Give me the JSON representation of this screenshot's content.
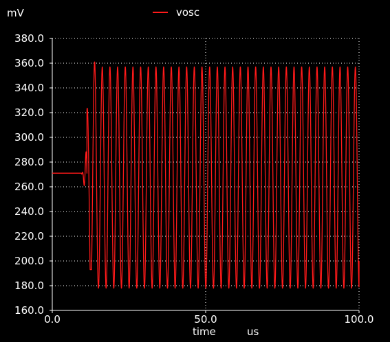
{
  "chart_data": {
    "type": "line",
    "ylabel": "mV",
    "xlabel": "time",
    "xunit": "us",
    "xlim": [
      0,
      100
    ],
    "ylim": [
      160,
      380
    ],
    "xticks": [
      0,
      50,
      100
    ],
    "xtick_labels": [
      "0.0",
      "50.0",
      "100.0"
    ],
    "yticks": [
      160,
      180,
      200,
      220,
      240,
      260,
      280,
      300,
      320,
      340,
      360,
      380
    ],
    "ytick_labels": [
      "160.0",
      "180.0",
      "200.0",
      "220.0",
      "240.0",
      "260.0",
      "280.0",
      "300.0",
      "320.0",
      "340.0",
      "360.0",
      "380.0"
    ],
    "grid": true,
    "legend_position": "top-center",
    "series": [
      {
        "name": "vosc",
        "color": "#ff1a1a",
        "initial_level": 271,
        "startup_time": 9.5,
        "oscillation_start": 11.3,
        "period": 2.5,
        "steady_max": 357,
        "steady_min": 178,
        "first_peak_max": 361,
        "first_trough_min": 193,
        "end_time": 100,
        "end_value": 200
      }
    ]
  }
}
